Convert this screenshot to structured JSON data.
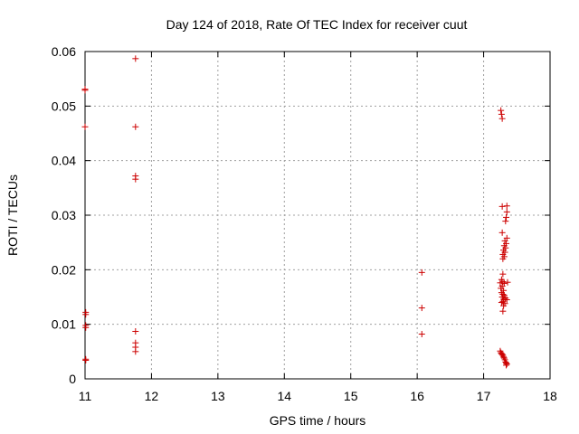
{
  "chart_data": {
    "type": "scatter",
    "title": "Day 124 of 2018, Rate Of TEC Index for receiver cuut",
    "xlabel": "GPS time / hours",
    "ylabel": "ROTI / TECUs",
    "xlim": [
      11,
      18
    ],
    "ylim": [
      0,
      0.06
    ],
    "xticks": [
      "11",
      "12",
      "13",
      "14",
      "15",
      "16",
      "17",
      "18"
    ],
    "yticks": [
      "0",
      "0.01",
      "0.02",
      "0.03",
      "0.04",
      "0.05",
      "0.06"
    ],
    "xtick_values": [
      11,
      12,
      13,
      14,
      15,
      16,
      17,
      18
    ],
    "ytick_values": [
      0,
      0.01,
      0.02,
      0.03,
      0.04,
      0.05,
      0.06
    ],
    "grid": true,
    "marker": "+",
    "color": "#cc0000",
    "series": [
      {
        "points": [
          [
            11.0,
            0.0531
          ],
          [
            11.0,
            0.0529
          ],
          [
            11.0,
            0.0462
          ],
          [
            11.01,
            0.0122
          ],
          [
            11.01,
            0.0118
          ],
          [
            11.01,
            0.0098
          ],
          [
            11.01,
            0.0094
          ],
          [
            11.01,
            0.0036
          ],
          [
            11.01,
            0.0034
          ],
          [
            11.76,
            0.0587
          ],
          [
            11.76,
            0.0462
          ],
          [
            11.76,
            0.0372
          ],
          [
            11.76,
            0.0366
          ],
          [
            11.76,
            0.0087
          ],
          [
            11.76,
            0.0066
          ],
          [
            11.76,
            0.0058
          ],
          [
            11.76,
            0.005
          ],
          [
            16.07,
            0.0195
          ],
          [
            16.07,
            0.013
          ],
          [
            16.07,
            0.0082
          ],
          [
            17.26,
            0.0492
          ],
          [
            17.27,
            0.0485
          ],
          [
            17.28,
            0.0477
          ],
          [
            17.28,
            0.0316
          ],
          [
            17.35,
            0.0317
          ],
          [
            17.35,
            0.0306
          ],
          [
            17.34,
            0.0296
          ],
          [
            17.33,
            0.0289
          ],
          [
            17.28,
            0.0268
          ],
          [
            17.35,
            0.0258
          ],
          [
            17.32,
            0.0253
          ],
          [
            17.34,
            0.0248
          ],
          [
            17.31,
            0.0244
          ],
          [
            17.33,
            0.024
          ],
          [
            17.3,
            0.0236
          ],
          [
            17.32,
            0.0232
          ],
          [
            17.29,
            0.0228
          ],
          [
            17.31,
            0.0224
          ],
          [
            17.29,
            0.022
          ],
          [
            17.29,
            0.0192
          ],
          [
            17.27,
            0.0182
          ],
          [
            17.29,
            0.0178
          ],
          [
            17.36,
            0.0177
          ],
          [
            17.25,
            0.0176
          ],
          [
            17.31,
            0.0175
          ],
          [
            17.28,
            0.017
          ],
          [
            17.26,
            0.0166
          ],
          [
            17.3,
            0.0162
          ],
          [
            17.27,
            0.0158
          ],
          [
            17.29,
            0.0155
          ],
          [
            17.31,
            0.0153
          ],
          [
            17.28,
            0.015
          ],
          [
            17.33,
            0.0148
          ],
          [
            17.3,
            0.0146
          ],
          [
            17.35,
            0.0145
          ],
          [
            17.29,
            0.0142
          ],
          [
            17.27,
            0.014
          ],
          [
            17.32,
            0.0138
          ],
          [
            17.3,
            0.0134
          ],
          [
            17.29,
            0.0124
          ],
          [
            17.25,
            0.0051
          ],
          [
            17.26,
            0.0048
          ],
          [
            17.27,
            0.0046
          ],
          [
            17.28,
            0.0045
          ],
          [
            17.29,
            0.0043
          ],
          [
            17.3,
            0.004
          ],
          [
            17.31,
            0.0038
          ],
          [
            17.32,
            0.0035
          ],
          [
            17.33,
            0.0031
          ],
          [
            17.34,
            0.0029
          ],
          [
            17.35,
            0.0027
          ],
          [
            17.34,
            0.0025
          ]
        ]
      }
    ]
  }
}
